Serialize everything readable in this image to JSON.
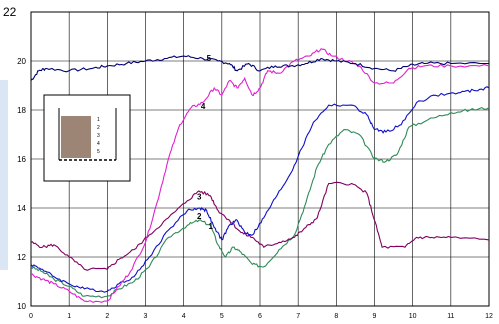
{
  "chart_data": {
    "type": "line",
    "title": "",
    "xlabel": "",
    "ylabel": "",
    "xlim": [
      0,
      12
    ],
    "ylim": [
      10,
      22
    ],
    "x_ticks": [
      "0",
      "1",
      "2",
      "3",
      "4",
      "5",
      "6",
      "7",
      "8",
      "9",
      "10",
      "11",
      "12"
    ],
    "y_ticks": [
      "10",
      "12",
      "14",
      "16",
      "18",
      "20",
      "22"
    ],
    "grid": true,
    "legend": "none",
    "series": [
      {
        "name": "1",
        "color": "#2e8b57",
        "points": [
          [
            0,
            11.6
          ],
          [
            0.3,
            11.4
          ],
          [
            0.6,
            11.1
          ],
          [
            1.0,
            10.8
          ],
          [
            1.4,
            10.4
          ],
          [
            2.0,
            10.4
          ],
          [
            2.3,
            10.7
          ],
          [
            2.7,
            11.0
          ],
          [
            3.1,
            11.6
          ],
          [
            3.6,
            12.8
          ],
          [
            4.1,
            13.3
          ],
          [
            4.4,
            13.5
          ],
          [
            4.7,
            13.3
          ],
          [
            4.9,
            12.5
          ],
          [
            5.1,
            12.0
          ],
          [
            5.3,
            12.4
          ],
          [
            5.5,
            12.2
          ],
          [
            5.8,
            11.7
          ],
          [
            6.1,
            11.6
          ],
          [
            6.5,
            12.3
          ],
          [
            6.9,
            12.9
          ],
          [
            7.2,
            14.2
          ],
          [
            7.5,
            15.7
          ],
          [
            7.8,
            16.6
          ],
          [
            8.2,
            17.2
          ],
          [
            8.6,
            17.0
          ],
          [
            9.0,
            16.0
          ],
          [
            9.3,
            15.9
          ],
          [
            9.6,
            16.2
          ],
          [
            9.9,
            17.3
          ],
          [
            10.4,
            17.6
          ],
          [
            11.0,
            17.9
          ],
          [
            11.5,
            18.0
          ],
          [
            12.0,
            18.1
          ]
        ]
      },
      {
        "name": "2",
        "color": "#1010c8",
        "points": [
          [
            0,
            11.7
          ],
          [
            0.3,
            11.5
          ],
          [
            0.6,
            11.2
          ],
          [
            1.0,
            10.9
          ],
          [
            1.4,
            10.7
          ],
          [
            2.0,
            10.6
          ],
          [
            2.3,
            10.9
          ],
          [
            2.7,
            11.2
          ],
          [
            3.1,
            12.0
          ],
          [
            3.6,
            13.1
          ],
          [
            4.1,
            13.9
          ],
          [
            4.4,
            14.0
          ],
          [
            4.6,
            13.9
          ],
          [
            4.8,
            13.2
          ],
          [
            5.0,
            12.7
          ],
          [
            5.2,
            13.3
          ],
          [
            5.4,
            13.5
          ],
          [
            5.6,
            13.0
          ],
          [
            5.8,
            12.9
          ],
          [
            6.1,
            13.6
          ],
          [
            6.4,
            14.4
          ],
          [
            6.8,
            15.4
          ],
          [
            7.0,
            16.1
          ],
          [
            7.4,
            17.5
          ],
          [
            7.8,
            18.2
          ],
          [
            8.4,
            18.2
          ],
          [
            8.8,
            17.8
          ],
          [
            9.0,
            17.2
          ],
          [
            9.3,
            17.1
          ],
          [
            9.7,
            17.4
          ],
          [
            10.1,
            18.3
          ],
          [
            10.6,
            18.6
          ],
          [
            11.2,
            18.7
          ],
          [
            11.6,
            18.8
          ],
          [
            12.0,
            18.9
          ]
        ]
      },
      {
        "name": "3",
        "color": "#800060",
        "points": [
          [
            0,
            12.6
          ],
          [
            0.3,
            12.4
          ],
          [
            0.6,
            12.5
          ],
          [
            1.0,
            12.0
          ],
          [
            1.4,
            11.5
          ],
          [
            2.0,
            11.5
          ],
          [
            2.3,
            11.9
          ],
          [
            2.7,
            12.3
          ],
          [
            3.1,
            12.9
          ],
          [
            3.6,
            13.6
          ],
          [
            4.1,
            14.3
          ],
          [
            4.4,
            14.7
          ],
          [
            4.7,
            14.5
          ],
          [
            4.9,
            13.9
          ],
          [
            5.2,
            13.5
          ],
          [
            5.5,
            13.0
          ],
          [
            5.8,
            12.8
          ],
          [
            6.1,
            12.4
          ],
          [
            6.5,
            12.6
          ],
          [
            6.9,
            12.8
          ],
          [
            7.2,
            13.2
          ],
          [
            7.5,
            13.6
          ],
          [
            7.8,
            15.0
          ],
          [
            8.4,
            15.0
          ],
          [
            8.8,
            14.6
          ],
          [
            9.0,
            13.5
          ],
          [
            9.2,
            12.4
          ],
          [
            9.8,
            12.4
          ],
          [
            10.1,
            12.8
          ],
          [
            10.5,
            12.8
          ],
          [
            11.0,
            12.8
          ],
          [
            12.0,
            12.7
          ]
        ]
      },
      {
        "name": "4",
        "color": "#e020d0",
        "points": [
          [
            0,
            11.3
          ],
          [
            0.3,
            11.1
          ],
          [
            0.6,
            10.9
          ],
          [
            1.0,
            10.6
          ],
          [
            1.4,
            10.2
          ],
          [
            2.0,
            10.2
          ],
          [
            2.3,
            10.8
          ],
          [
            2.6,
            11.4
          ],
          [
            3.0,
            12.6
          ],
          [
            3.3,
            14.2
          ],
          [
            3.6,
            16.0
          ],
          [
            3.9,
            17.4
          ],
          [
            4.2,
            18.1
          ],
          [
            4.5,
            18.3
          ],
          [
            4.8,
            18.9
          ],
          [
            5.0,
            18.6
          ],
          [
            5.2,
            19.2
          ],
          [
            5.4,
            18.9
          ],
          [
            5.6,
            19.3
          ],
          [
            5.8,
            18.6
          ],
          [
            6.0,
            18.9
          ],
          [
            6.2,
            19.6
          ],
          [
            6.5,
            19.5
          ],
          [
            6.9,
            20.0
          ],
          [
            7.3,
            20.2
          ],
          [
            7.6,
            20.5
          ],
          [
            7.9,
            20.2
          ],
          [
            8.3,
            20.0
          ],
          [
            8.6,
            19.8
          ],
          [
            9.0,
            19.1
          ],
          [
            9.5,
            19.1
          ],
          [
            9.9,
            19.7
          ],
          [
            10.3,
            19.8
          ],
          [
            11.0,
            19.8
          ],
          [
            12.0,
            19.8
          ]
        ]
      },
      {
        "name": "5",
        "color": "#000070",
        "points": [
          [
            0,
            19.2
          ],
          [
            0.2,
            19.6
          ],
          [
            0.4,
            19.7
          ],
          [
            1.0,
            19.6
          ],
          [
            1.6,
            19.7
          ],
          [
            2.0,
            19.8
          ],
          [
            2.5,
            19.9
          ],
          [
            3.0,
            20.0
          ],
          [
            3.5,
            20.1
          ],
          [
            4.0,
            20.2
          ],
          [
            4.5,
            20.1
          ],
          [
            4.9,
            20.0
          ],
          [
            5.2,
            19.9
          ],
          [
            5.4,
            19.6
          ],
          [
            5.7,
            19.9
          ],
          [
            6.0,
            19.6
          ],
          [
            6.4,
            19.8
          ],
          [
            6.8,
            19.8
          ],
          [
            7.2,
            19.9
          ],
          [
            7.6,
            20.1
          ],
          [
            8.0,
            20.0
          ],
          [
            8.5,
            19.9
          ],
          [
            9.0,
            19.7
          ],
          [
            9.5,
            19.6
          ],
          [
            9.9,
            19.8
          ],
          [
            10.3,
            19.9
          ],
          [
            11.0,
            19.9
          ],
          [
            12.0,
            19.9
          ]
        ]
      }
    ]
  },
  "label_offsets": []
}
